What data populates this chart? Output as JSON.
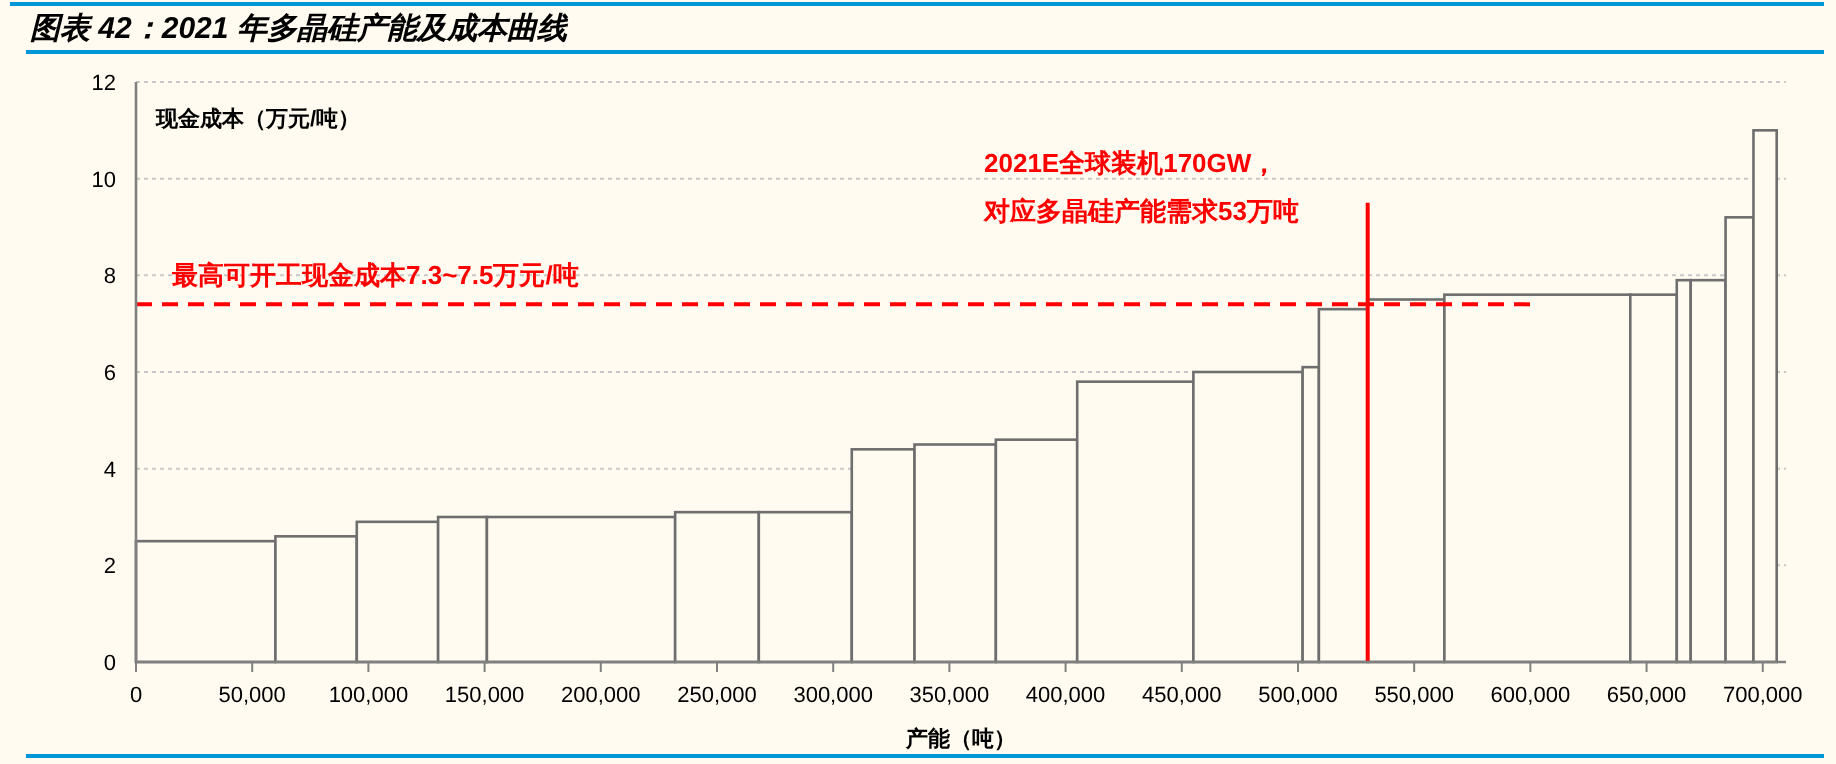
{
  "chart_data": {
    "type": "histogram",
    "title": "图表 42：2021 年多晶硅产能及成本曲线",
    "xlabel": "产能（吨）",
    "ylabel": "现金成本（万元/吨）",
    "series": [
      {
        "color": "#fffbf0",
        "bins": [
          0,
          60000,
          95000,
          130000,
          151000,
          232000,
          268000,
          308000,
          335000,
          370000,
          405000,
          455000,
          502000,
          509000,
          530000,
          563000,
          643000,
          663000,
          669000,
          684000,
          696000,
          706000
        ],
        "values": [
          2.5,
          2.6,
          2.9,
          3.0,
          3.0,
          3.1,
          3.1,
          4.4,
          4.5,
          4.6,
          5.8,
          6.0,
          6.1,
          7.3,
          7.5,
          7.6,
          7.6,
          7.9,
          7.9,
          9.2,
          11.0
        ]
      },
      {
        "type": "line",
        "color": "#ff0000",
        "line_style": "dashed",
        "x": [
          0,
          600000
        ],
        "values": [
          7.4,
          7.4
        ]
      },
      {
        "type": "line",
        "color": "#ff0000",
        "line_style": "solid",
        "x": [
          530000,
          530000
        ],
        "values": [
          0,
          9.5
        ]
      }
    ],
    "annotations": [
      "最高可开工现金成本7.3~7.5万元/吨",
      "2021E全球装机170GW，",
      "对应多晶硅产能需求53万吨"
    ],
    "xlim": [
      0,
      710000
    ],
    "ylim": [
      0,
      12
    ],
    "xticks": [
      {
        "value": 0,
        "label": "0"
      },
      {
        "value": 50000,
        "label": "50,000"
      },
      {
        "value": 100000,
        "label": "100,000"
      },
      {
        "value": 150000,
        "label": "150,000"
      },
      {
        "value": 200000,
        "label": "200,000"
      },
      {
        "value": 250000,
        "label": "250,000"
      },
      {
        "value": 300000,
        "label": "300,000"
      },
      {
        "value": 350000,
        "label": "350,000"
      },
      {
        "value": 400000,
        "label": "400,000"
      },
      {
        "value": 450000,
        "label": "450,000"
      },
      {
        "value": 500000,
        "label": "500,000"
      },
      {
        "value": 550000,
        "label": "550,000"
      },
      {
        "value": 600000,
        "label": "600,000"
      },
      {
        "value": 650000,
        "label": "650,000"
      },
      {
        "value": 700000,
        "label": "700,000"
      }
    ],
    "yticks": [
      0,
      2,
      4,
      6,
      8,
      10,
      12
    ],
    "grid": "y"
  }
}
